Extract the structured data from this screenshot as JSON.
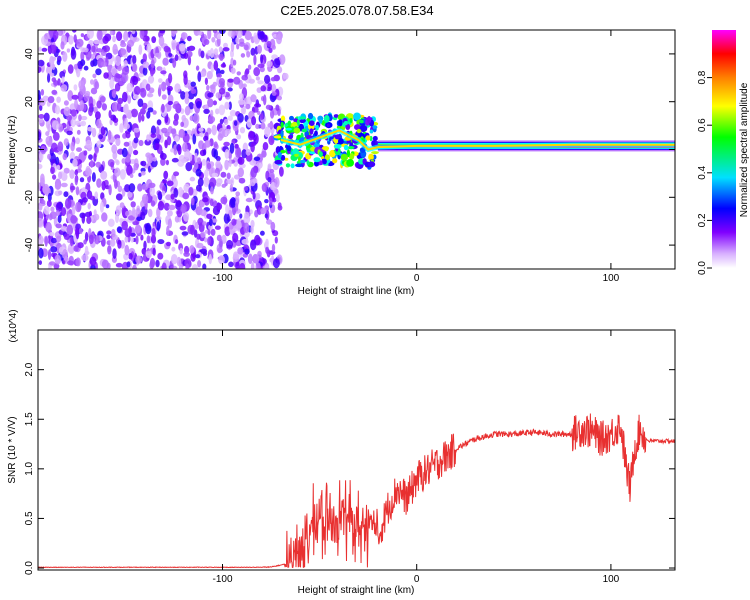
{
  "title": "C2E5.2025.078.07.58.E34",
  "chart_data": [
    {
      "type": "heatmap",
      "xlabel": "Height of straight line (km)",
      "ylabel": "Frequency (Hz)",
      "xlim": [
        -195,
        133
      ],
      "ylim": [
        -50,
        50
      ],
      "x_ticks": [
        -100,
        0,
        100
      ],
      "x_tick_labels": [
        "-100",
        "0",
        "100"
      ],
      "y_ticks": [
        -40,
        -20,
        0,
        20,
        40
      ],
      "y_tick_labels": [
        "-40",
        "-20",
        "0",
        "20",
        "40"
      ],
      "colorbar": {
        "label": "Normalized spectral amplitude",
        "range": [
          0,
          1
        ],
        "ticks": [
          0.0,
          0.2,
          0.4,
          0.6,
          0.8
        ],
        "tick_labels": [
          "0.0",
          "0.2",
          "0.4",
          "0.6",
          "0.8"
        ],
        "colormap": [
          "#ffffff",
          "#c080ff",
          "#7000ff",
          "#0000ff",
          "#00ffff",
          "#00ff00",
          "#ffff00",
          "#ff8000",
          "#ff0000",
          "#ff00ff"
        ]
      },
      "regions": [
        {
          "x_range": [
            -195,
            -70
          ],
          "f_range": [
            -50,
            50
          ],
          "amplitude": [
            0.05,
            0.3
          ],
          "pattern": "scattered noise"
        },
        {
          "x_range": [
            -72,
            -20
          ],
          "f_range": [
            -12,
            14
          ],
          "amplitude": [
            0.2,
            0.7
          ],
          "pattern": "scattered"
        },
        {
          "x_range": [
            -20,
            133
          ],
          "f_center": 1.5,
          "amplitude": [
            0.8,
            1.0
          ],
          "pattern": "narrow band"
        }
      ],
      "band_path": [
        [
          -70,
          4
        ],
        [
          -60,
          2
        ],
        [
          -50,
          5
        ],
        [
          -40,
          8
        ],
        [
          -30,
          4
        ],
        [
          -25,
          0
        ],
        [
          -20,
          1
        ],
        [
          0,
          1.5
        ],
        [
          40,
          1.5
        ],
        [
          80,
          2
        ],
        [
          100,
          2
        ],
        [
          133,
          2
        ]
      ],
      "grid": false
    },
    {
      "type": "line",
      "xlabel": "Height of straight line (km)",
      "ylabel": "SNR (10 * V/V)",
      "y_multiplier_label": "(x10^4)",
      "xlim": [
        -195,
        133
      ],
      "ylim": [
        -0.02,
        2.4
      ],
      "x_ticks": [
        -100,
        0,
        100
      ],
      "x_tick_labels": [
        "-100",
        "0",
        "100"
      ],
      "y_ticks": [
        0.0,
        0.5,
        1.0,
        1.5,
        2.0
      ],
      "y_tick_labels": [
        "0.0",
        "0.5",
        "1.0",
        "1.5",
        "2.0"
      ],
      "series": [
        {
          "color": "#e83030",
          "x": [
            -195,
            -150,
            -100,
            -75,
            -65,
            -60,
            -50,
            -45,
            -40,
            -35,
            -30,
            -25,
            -20,
            -15,
            -10,
            -5,
            0,
            10,
            20,
            30,
            40,
            50,
            60,
            70,
            80,
            85,
            90,
            95,
            100,
            105,
            108,
            110,
            112,
            115,
            118,
            120,
            125,
            133
          ],
          "values": [
            0.0,
            0.0,
            0.0,
            0.01,
            0.05,
            0.2,
            0.5,
            0.45,
            0.55,
            0.5,
            0.4,
            0.45,
            0.3,
            0.6,
            0.8,
            0.7,
            0.9,
            1.05,
            1.2,
            1.3,
            1.35,
            1.35,
            1.37,
            1.35,
            1.35,
            1.4,
            1.38,
            1.3,
            1.35,
            1.45,
            1.0,
            0.8,
            1.2,
            1.4,
            1.3,
            1.28,
            1.28,
            1.28
          ]
        }
      ],
      "grid": false
    }
  ]
}
